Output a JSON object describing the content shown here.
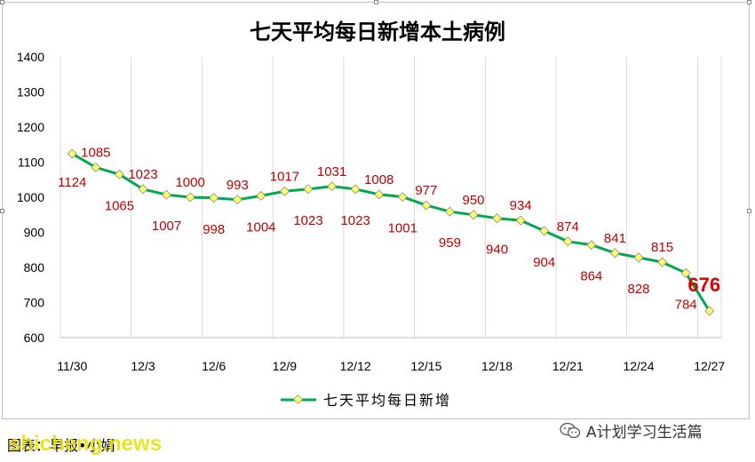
{
  "chart_data": {
    "type": "line",
    "title": "七天平均每日新增本土病例",
    "xlabel": "",
    "ylabel": "",
    "ylim": [
      600,
      1400
    ],
    "yticks": [
      600,
      700,
      800,
      900,
      1000,
      1100,
      1200,
      1300,
      1400
    ],
    "grid": "vertical",
    "legend_position": "bottom",
    "x": [
      "11/30",
      "12/1",
      "12/2",
      "12/3",
      "12/4",
      "12/5",
      "12/6",
      "12/7",
      "12/8",
      "12/9",
      "12/10",
      "12/11",
      "12/12",
      "12/13",
      "12/14",
      "12/15",
      "12/16",
      "12/17",
      "12/18",
      "12/19",
      "12/20",
      "12/21",
      "12/22",
      "12/23",
      "12/24",
      "12/25",
      "12/26",
      "12/27"
    ],
    "xtick_labels": [
      "11/30",
      "12/3",
      "12/6",
      "12/9",
      "12/12",
      "12/15",
      "12/18",
      "12/21",
      "12/24",
      "12/27"
    ],
    "series": [
      {
        "name": "七天平均每日新增",
        "color": "#00a84f",
        "marker_color": "#ffff66",
        "values": [
          1124,
          1085,
          1065,
          1023,
          1007,
          1000,
          998,
          993,
          1004,
          1017,
          1023,
          1031,
          1023,
          1008,
          1001,
          977,
          959,
          950,
          940,
          934,
          904,
          874,
          864,
          841,
          828,
          815,
          784,
          676
        ]
      }
    ]
  },
  "footer": {
    "source": "图表：早报•小娟",
    "watermark": "shicheng.news",
    "account": "A计划学习生活篇"
  }
}
